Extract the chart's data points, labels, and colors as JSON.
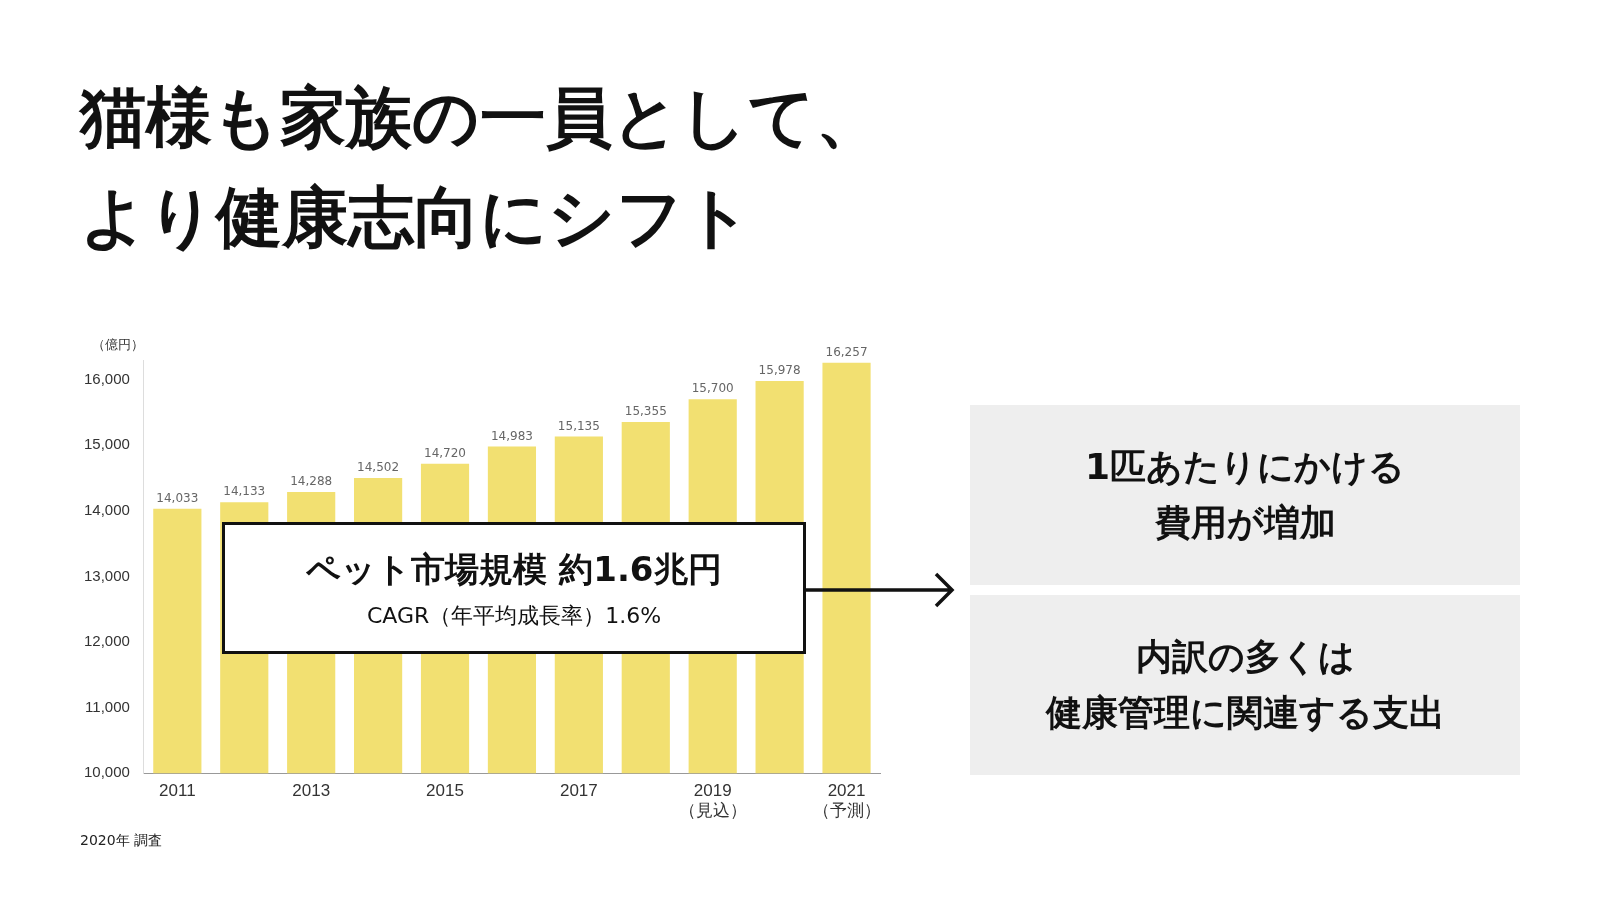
{
  "chart_data": {
    "type": "bar",
    "title": "猫様も家族の一員として、より健康志向にシフト",
    "ylabel": "（億円）",
    "categories": [
      "2011",
      null,
      "2013",
      null,
      "2015",
      null,
      "2017",
      null,
      "2019\n（見込）",
      null,
      "2021\n（予測）"
    ],
    "values": [
      14033,
      14133,
      14288,
      14502,
      14720,
      14983,
      15135,
      15355,
      15700,
      15978,
      16257
    ],
    "value_labels": [
      "14,033",
      "14,133",
      "14,288",
      "14,502",
      "14,720",
      "14,983",
      "15,135",
      "15,355",
      "15,700",
      "15,978",
      "16,257"
    ],
    "color": "#f2e071",
    "ylim": [
      10000,
      16300
    ],
    "yticks": [
      {
        "value": 10000,
        "label": "10,000"
      },
      {
        "value": 11000,
        "label": "11,000"
      },
      {
        "value": 12000,
        "label": "12,000"
      },
      {
        "value": 13000,
        "label": "13,000"
      },
      {
        "value": 14000,
        "label": "14,000"
      },
      {
        "value": 15000,
        "label": "15,000"
      },
      {
        "value": 16000,
        "label": "16,000"
      }
    ],
    "annotations": [
      "ペット市場規模 約1.6兆円",
      "CAGR（年平均成長率）1.6%",
      "1匹あたりにかける",
      "費用が増加",
      "内訳の多くは",
      "健康管理に関連する支出",
      "2020年 調査"
    ]
  }
}
